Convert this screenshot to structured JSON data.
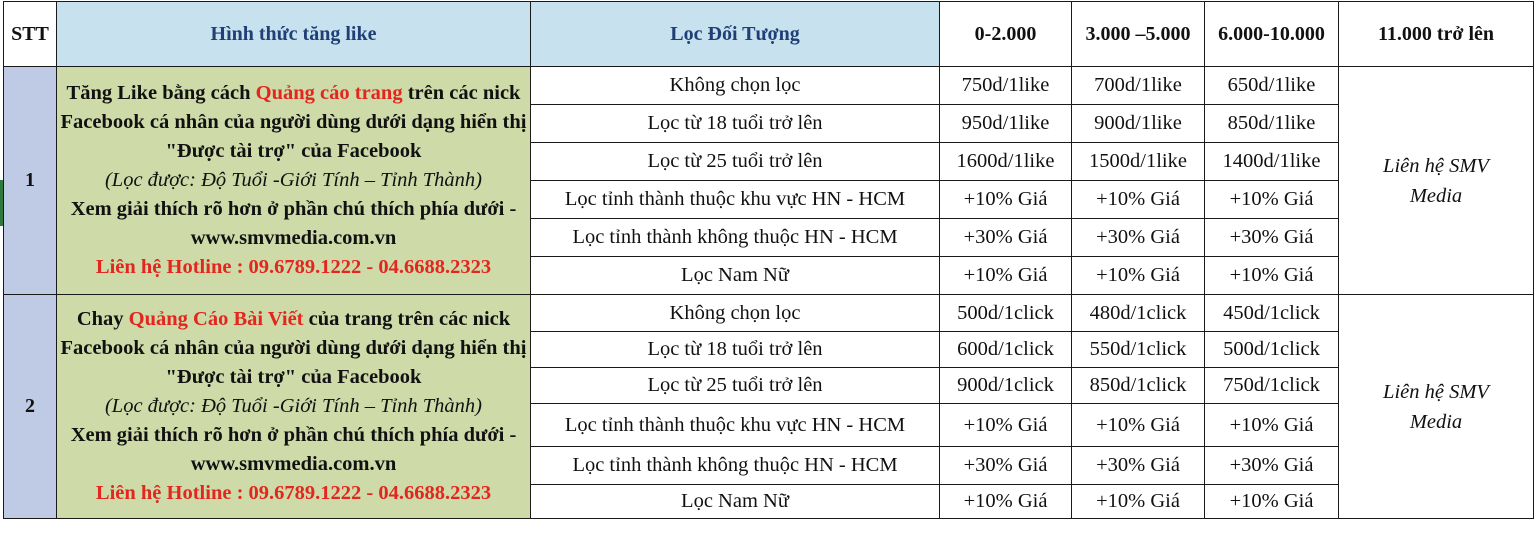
{
  "header": {
    "stt": "STT",
    "method": "Hình thức tăng like",
    "filter": "Lọc Đối Tượng",
    "tier1": "0-2.000",
    "tier2": "3.000 –5.000",
    "tier3": "6.000-10.000",
    "tier4": "11.000 trở lên"
  },
  "colors": {
    "header_blue_bg": "#c7e2ee",
    "header_blue_text": "#1f3f76",
    "stt_bg": "#bfcbe4",
    "desc_bg": "#cfdaa9",
    "highlight_red": "#e3261e"
  },
  "sections": [
    {
      "stt": "1",
      "desc": {
        "pre": "Tăng Like bằng cách ",
        "highlight": "Quảng cáo trang",
        "post": " trên các nick Facebook cá nhân của người dùng dưới dạng hiển thị \"Được tài trợ\" của Facebook",
        "filters_note": "(Lọc được: Độ Tuổi -Giới Tính – Tỉnh Thành)",
        "more": "Xem giải thích rõ hơn ở phần chú thích phía dưới - www.smvmedia.com.vn",
        "hotline": "Liên hệ Hotline : 09.6789.1222 - 04.6688.2323"
      },
      "contact": "Liên hệ  SMV Media",
      "rows": [
        {
          "filter": "Không chọn lọc",
          "p1": "750d/1like",
          "p2": "700d/1like",
          "p3": "650d/1like"
        },
        {
          "filter": "Lọc từ 18 tuổi trở lên",
          "p1": "950d/1like",
          "p2": "900d/1like",
          "p3": "850d/1like"
        },
        {
          "filter": "Lọc từ 25 tuổi trở lên",
          "p1": "1600d/1like",
          "p2": "1500d/1like",
          "p3": "1400d/1like"
        },
        {
          "filter": "Lọc tỉnh thành thuộc khu vực HN - HCM",
          "p1": "+10% Giá",
          "p2": "+10% Giá",
          "p3": "+10% Giá"
        },
        {
          "filter": "Lọc tỉnh thành không thuộc HN - HCM",
          "p1": "+30% Giá",
          "p2": "+30% Giá",
          "p3": "+30% Giá"
        },
        {
          "filter": "Lọc Nam Nữ",
          "p1": "+10% Giá",
          "p2": "+10% Giá",
          "p3": "+10% Giá"
        }
      ]
    },
    {
      "stt": "2",
      "desc": {
        "pre": "Chay ",
        "highlight": "Quảng Cáo Bài Viết",
        "post": " của trang trên các nick Facebook cá nhân của người dùng dưới dạng hiển thị \"Được tài trợ\" của Facebook",
        "filters_note": "(Lọc được: Độ Tuổi -Giới Tính – Tỉnh Thành)",
        "more": "Xem giải thích rõ hơn ở phần chú thích phía dưới - www.smvmedia.com.vn",
        "hotline": "Liên hệ Hotline : 09.6789.1222 - 04.6688.2323"
      },
      "contact": "Liên hệ  SMV Media",
      "rows": [
        {
          "filter": "Không chọn lọc",
          "p1": "500d/1click",
          "p2": "480d/1click",
          "p3": "450d/1click"
        },
        {
          "filter": "Lọc từ 18 tuổi trở lên",
          "p1": "600d/1click",
          "p2": "550d/1click",
          "p3": "500d/1click"
        },
        {
          "filter": "Lọc từ 25 tuổi trở lên",
          "p1": "900d/1click",
          "p2": "850d/1click",
          "p3": "750d/1click"
        },
        {
          "filter": "Lọc tỉnh thành thuộc khu vực HN - HCM",
          "p1": "+10% Giá",
          "p2": "+10% Giá",
          "p3": "+10% Giá"
        },
        {
          "filter": "Lọc tỉnh thành không thuộc HN - HCM",
          "p1": "+30% Giá",
          "p2": "+30% Giá",
          "p3": "+30% Giá"
        },
        {
          "filter": "Lọc Nam Nữ",
          "p1": "+10% Giá",
          "p2": "+10% Giá",
          "p3": "+10% Giá"
        }
      ]
    }
  ]
}
